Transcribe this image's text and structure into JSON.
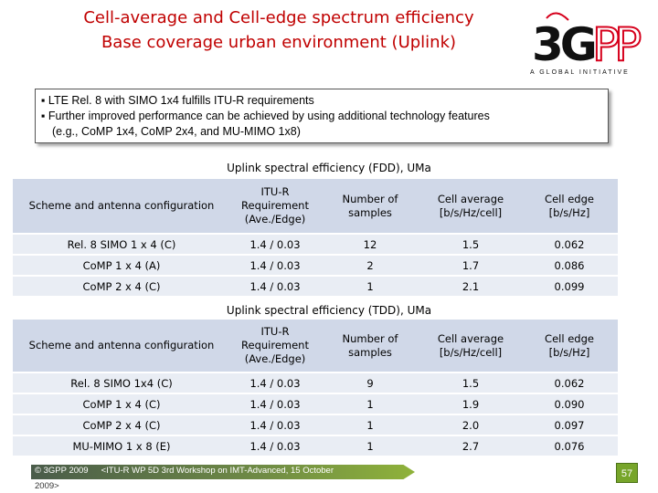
{
  "title": {
    "line1": "Cell-average and Cell-edge spectrum efficiency",
    "line2": "Base coverage urban environment (Uplink)"
  },
  "logo": {
    "text": "3GPP",
    "tagline": "A GLOBAL INITIATIVE",
    "colors": {
      "red": "#d6001c",
      "black": "#111111"
    }
  },
  "summary": {
    "bullet": "▪",
    "line1": "LTE Rel. 8 with SIMO 1x4 fulfills ITU-R requirements",
    "line2": "Further improved performance can be achieved by using additional technology features",
    "line3": "(e.g., CoMP 1x4, CoMP 2x4, and MU-MIMO 1x8)"
  },
  "fdd": {
    "caption": "Uplink spectral efficiency (FDD), UMa",
    "headers": [
      "Scheme and antenna configuration",
      "ITU-R Requirement (Ave./Edge)",
      "Number of samples",
      "Cell average [b/s/Hz/cell]",
      "Cell edge [b/s/Hz]"
    ],
    "rows": [
      [
        "Rel. 8 SIMO 1 x 4 (C)",
        "1.4 / 0.03",
        "12",
        "1.5",
        "0.062"
      ],
      [
        "CoMP 1 x 4 (A)",
        "1.4 / 0.03",
        "2",
        "1.7",
        "0.086"
      ],
      [
        "CoMP 2 x 4 (C)",
        "1.4 / 0.03",
        "1",
        "2.1",
        "0.099"
      ]
    ]
  },
  "tdd": {
    "caption": "Uplink spectral efficiency (TDD), UMa",
    "headers": [
      "Scheme and antenna configuration",
      "ITU-R Requirement (Ave./Edge)",
      "Number of samples",
      "Cell average [b/s/Hz/cell]",
      "Cell edge [b/s/Hz]"
    ],
    "rows": [
      [
        "Rel. 8 SIMO 1x4 (C)",
        "1.4 / 0.03",
        "9",
        "1.5",
        "0.062"
      ],
      [
        "CoMP 1 x 4 (C)",
        "1.4 / 0.03",
        "1",
        "1.9",
        "0.090"
      ],
      [
        "CoMP 2 x 4 (C)",
        "1.4 / 0.03",
        "1",
        "2.0",
        "0.097"
      ],
      [
        "MU-MIMO 1 x 8 (E)",
        "1.4 / 0.03",
        "1",
        "2.7",
        "0.076"
      ]
    ]
  },
  "footer": {
    "copyright": "© 3GPP 2009",
    "conference": "<ITU-R WP 5D 3rd Workshop on IMT-Advanced, 15 October",
    "continuation": "2009>",
    "page": "57"
  }
}
